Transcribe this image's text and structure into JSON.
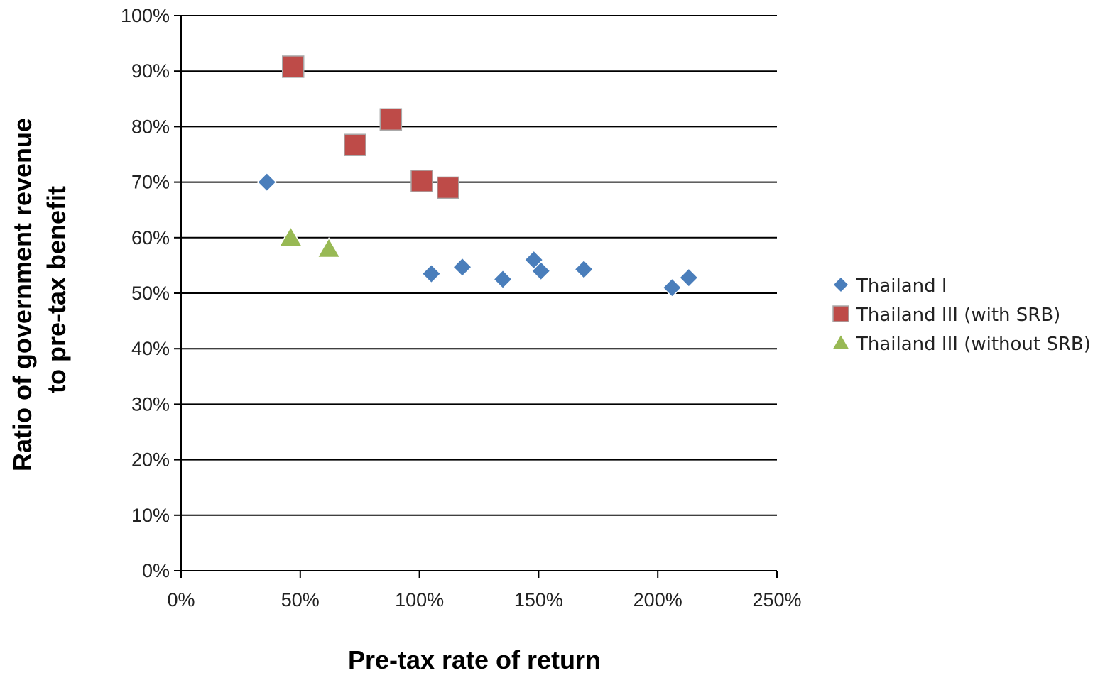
{
  "chart_data": {
    "type": "scatter",
    "xlabel": "Pre-tax rate of return",
    "ylabel_lines": [
      "Ratio of government revenue",
      "to pre-tax benefit"
    ],
    "xlim": [
      0,
      250
    ],
    "ylim": [
      0,
      100
    ],
    "x_ticks": [
      {
        "value": 0,
        "label": "0%"
      },
      {
        "value": 50,
        "label": "50%"
      },
      {
        "value": 100,
        "label": "100%"
      },
      {
        "value": 150,
        "label": "150%"
      },
      {
        "value": 200,
        "label": "200%"
      },
      {
        "value": 250,
        "label": "250%"
      }
    ],
    "y_ticks": [
      {
        "value": 0,
        "label": "0%"
      },
      {
        "value": 10,
        "label": "10%"
      },
      {
        "value": 20,
        "label": "20%"
      },
      {
        "value": 30,
        "label": "30%"
      },
      {
        "value": 40,
        "label": "40%"
      },
      {
        "value": 50,
        "label": "50%"
      },
      {
        "value": 60,
        "label": "60%"
      },
      {
        "value": 70,
        "label": "70%"
      },
      {
        "value": 80,
        "label": "80%"
      },
      {
        "value": 90,
        "label": "90%"
      },
      {
        "value": 100,
        "label": "100%"
      }
    ],
    "grid": "horizontal",
    "legend_position": "right",
    "series": [
      {
        "name": "Thailand I",
        "marker": "diamond",
        "color": "#4A7EBB",
        "points": [
          {
            "x": 36,
            "y": 70
          },
          {
            "x": 105,
            "y": 53.5
          },
          {
            "x": 118,
            "y": 54.7
          },
          {
            "x": 135,
            "y": 52.5
          },
          {
            "x": 148,
            "y": 56
          },
          {
            "x": 151,
            "y": 54
          },
          {
            "x": 169,
            "y": 54.3
          },
          {
            "x": 206,
            "y": 51
          },
          {
            "x": 213,
            "y": 52.8
          }
        ]
      },
      {
        "name": "Thailand III (with SRB)",
        "marker": "square",
        "color": "#BE4B48",
        "points": [
          {
            "x": 47,
            "y": 90.8
          },
          {
            "x": 73,
            "y": 76.7
          },
          {
            "x": 88,
            "y": 81.3
          },
          {
            "x": 101,
            "y": 70.2
          },
          {
            "x": 112,
            "y": 69
          }
        ]
      },
      {
        "name": "Thailand III (without SRB)",
        "marker": "triangle",
        "color": "#98B954",
        "points": [
          {
            "x": 46,
            "y": 60
          },
          {
            "x": 62,
            "y": 58
          }
        ]
      }
    ]
  }
}
